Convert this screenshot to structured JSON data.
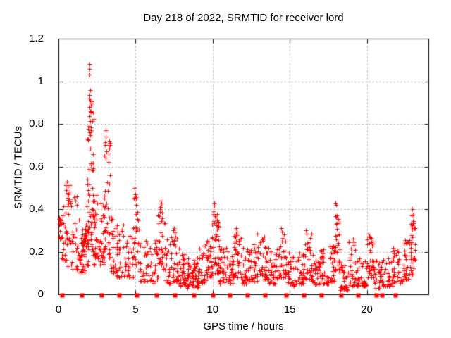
{
  "window": {
    "background": "#ffffff"
  },
  "chart_data": {
    "type": "scatter",
    "title": "Day 218 of 2022, SRMTID for receiver lord",
    "xlabel": "GPS time / hours",
    "ylabel": "SRMTID / TECUs",
    "xlim": [
      0,
      24
    ],
    "ylim": [
      0,
      1.2
    ],
    "xticks": {
      "values": [
        0,
        5,
        10,
        15,
        20
      ],
      "labels": [
        "0",
        "5",
        "10",
        "15",
        "20"
      ]
    },
    "yticks": {
      "values": [
        0,
        0.2,
        0.4,
        0.6,
        0.8,
        1.0,
        1.2
      ],
      "labels": [
        "0",
        "0.2",
        "0.4",
        "0.6",
        "0.8",
        "1",
        "1.2"
      ]
    },
    "grid": {
      "show": true,
      "color": "#a8a8a8",
      "dash": [
        2,
        3
      ]
    },
    "colors": {
      "background": "#ffffff",
      "frame": "#000000",
      "marker": "#ff0000",
      "text": "#000000"
    },
    "marker": {
      "shape": "plus",
      "size": 7
    },
    "seed": 20220218,
    "series": [
      {
        "name": "srmtid-scatter",
        "marker": "plus",
        "bins_format": "[hour_start, hour_end, n_points, y_min, y_max, bottom_bias] envelope read from plot",
        "envelope_bins": [
          [
            0.02,
            0.2,
            12,
            0.25,
            0.36,
            1.0
          ],
          [
            0.03,
            0.16,
            5,
            0.34,
            0.36,
            1.0
          ],
          [
            0.2,
            0.45,
            16,
            0.15,
            0.42,
            1.4
          ],
          [
            0.45,
            0.8,
            26,
            0.13,
            0.53,
            1.4
          ],
          [
            0.8,
            1.35,
            30,
            0.11,
            0.46,
            1.7
          ],
          [
            1.35,
            1.7,
            24,
            0.1,
            0.33,
            1.5
          ],
          [
            1.55,
            1.95,
            30,
            0.2,
            0.31,
            1.0
          ],
          [
            1.7,
            1.95,
            14,
            0.1,
            0.5,
            1.5
          ],
          [
            1.88,
            2.3,
            60,
            0.18,
            0.93,
            1.35
          ],
          [
            2.3,
            2.65,
            30,
            0.14,
            0.52,
            1.5
          ],
          [
            2.65,
            2.95,
            24,
            0.14,
            0.44,
            1.5
          ],
          [
            2.95,
            3.35,
            40,
            0.16,
            0.72,
            1.3
          ],
          [
            3.35,
            3.75,
            26,
            0.1,
            0.36,
            1.6
          ],
          [
            3.75,
            4.35,
            32,
            0.08,
            0.33,
            1.7
          ],
          [
            4.35,
            4.85,
            26,
            0.08,
            0.3,
            1.7
          ],
          [
            4.85,
            5.2,
            26,
            0.12,
            0.47,
            1.35
          ],
          [
            5.2,
            5.75,
            26,
            0.06,
            0.28,
            1.7
          ],
          [
            5.75,
            6.45,
            32,
            0.05,
            0.26,
            1.7
          ],
          [
            6.45,
            6.9,
            32,
            0.1,
            0.42,
            1.45
          ],
          [
            6.9,
            7.35,
            28,
            0.05,
            0.27,
            1.7
          ],
          [
            7.35,
            7.8,
            30,
            0.06,
            0.3,
            1.7
          ],
          [
            7.8,
            8.3,
            36,
            0.04,
            0.22,
            1.7
          ],
          [
            8.3,
            9.05,
            62,
            0.03,
            0.18,
            1.4
          ],
          [
            9.05,
            9.55,
            30,
            0.05,
            0.23,
            1.6
          ],
          [
            9.55,
            9.95,
            28,
            0.08,
            0.28,
            1.5
          ],
          [
            9.95,
            10.4,
            42,
            0.1,
            0.41,
            1.5
          ],
          [
            10.4,
            10.9,
            30,
            0.05,
            0.25,
            1.7
          ],
          [
            10.9,
            11.35,
            30,
            0.05,
            0.22,
            1.7
          ],
          [
            11.35,
            11.85,
            34,
            0.08,
            0.3,
            1.6
          ],
          [
            11.85,
            12.45,
            34,
            0.05,
            0.22,
            1.7
          ],
          [
            12.45,
            12.95,
            30,
            0.06,
            0.24,
            1.7
          ],
          [
            12.95,
            13.65,
            42,
            0.07,
            0.28,
            1.6
          ],
          [
            13.65,
            14.25,
            34,
            0.05,
            0.24,
            1.7
          ],
          [
            14.25,
            14.75,
            30,
            0.08,
            0.3,
            1.6
          ],
          [
            14.75,
            15.35,
            34,
            0.04,
            0.2,
            1.7
          ],
          [
            15.35,
            15.9,
            30,
            0.05,
            0.21,
            1.7
          ],
          [
            15.9,
            16.4,
            34,
            0.07,
            0.29,
            1.6
          ],
          [
            16.4,
            16.95,
            30,
            0.04,
            0.2,
            1.7
          ],
          [
            16.95,
            17.55,
            32,
            0.05,
            0.22,
            1.7
          ],
          [
            17.55,
            17.95,
            26,
            0.06,
            0.28,
            1.6
          ],
          [
            17.95,
            18.25,
            26,
            0.1,
            0.4,
            1.3
          ],
          [
            18.25,
            18.8,
            32,
            0.02,
            0.14,
            1.5
          ],
          [
            18.8,
            19.35,
            30,
            0.04,
            0.25,
            1.7
          ],
          [
            19.35,
            20.0,
            32,
            0.04,
            0.18,
            1.7
          ],
          [
            20.0,
            20.45,
            32,
            0.08,
            0.27,
            1.5
          ],
          [
            20.45,
            21.05,
            32,
            0.03,
            0.16,
            1.7
          ],
          [
            21.05,
            21.65,
            30,
            0.04,
            0.17,
            1.7
          ],
          [
            21.65,
            22.35,
            36,
            0.05,
            0.22,
            1.7
          ],
          [
            22.35,
            22.8,
            30,
            0.07,
            0.26,
            1.5
          ],
          [
            22.8,
            23.15,
            34,
            0.09,
            0.37,
            1.2
          ]
        ],
        "peak_points": [
          [
            2.01,
            1.082
          ],
          [
            2.03,
            1.057
          ],
          [
            2.0,
            1.032
          ],
          [
            2.05,
            0.958
          ],
          [
            2.02,
            0.935
          ],
          [
            2.06,
            0.908
          ],
          [
            2.0,
            0.88
          ],
          [
            2.04,
            0.858
          ],
          [
            2.03,
            0.836
          ],
          [
            2.07,
            0.814
          ],
          [
            1.97,
            0.79
          ],
          [
            2.1,
            0.77
          ],
          [
            3.04,
            0.77
          ],
          [
            3.08,
            0.74
          ],
          [
            3.01,
            0.7
          ],
          [
            3.12,
            0.67
          ],
          [
            3.06,
            0.64
          ],
          [
            0.55,
            0.53
          ],
          [
            0.6,
            0.505
          ],
          [
            0.52,
            0.49
          ],
          [
            0.65,
            0.47
          ],
          [
            1.02,
            0.455
          ],
          [
            1.08,
            0.44
          ],
          [
            4.95,
            0.5
          ],
          [
            5.0,
            0.47
          ],
          [
            4.9,
            0.45
          ],
          [
            5.05,
            0.42
          ],
          [
            6.62,
            0.44
          ],
          [
            6.66,
            0.425
          ],
          [
            6.58,
            0.41
          ],
          [
            6.7,
            0.385
          ],
          [
            7.5,
            0.31
          ],
          [
            7.45,
            0.3
          ],
          [
            10.08,
            0.43
          ],
          [
            10.12,
            0.415
          ],
          [
            10.05,
            0.39
          ],
          [
            10.18,
            0.36
          ],
          [
            11.5,
            0.31
          ],
          [
            11.55,
            0.295
          ],
          [
            12.9,
            0.285
          ],
          [
            13.35,
            0.27
          ],
          [
            14.45,
            0.31
          ],
          [
            14.5,
            0.295
          ],
          [
            16.05,
            0.3
          ],
          [
            16.1,
            0.285
          ],
          [
            17.98,
            0.43
          ],
          [
            18.03,
            0.42
          ],
          [
            18.0,
            0.36
          ],
          [
            18.06,
            0.335
          ],
          [
            19.1,
            0.26
          ],
          [
            20.1,
            0.285
          ],
          [
            20.18,
            0.27
          ],
          [
            22.95,
            0.4
          ],
          [
            23.0,
            0.375
          ],
          [
            22.9,
            0.37
          ],
          [
            23.05,
            0.345
          ],
          [
            22.85,
            0.33
          ],
          [
            23.08,
            0.31
          ],
          [
            0.08,
            0.35
          ],
          [
            0.1,
            0.352
          ]
        ]
      },
      {
        "name": "event-markers",
        "marker": "filled-square",
        "size": 6,
        "y": 0,
        "hours": [
          0.23,
          1.5,
          2.8,
          3.92,
          5.06,
          6.35,
          7.56,
          8.77,
          9.99,
          11.12,
          12.26,
          13.4,
          14.77,
          15.91,
          17.05,
          18.32,
          19.45,
          20.6,
          21.0,
          21.87
        ]
      }
    ]
  }
}
